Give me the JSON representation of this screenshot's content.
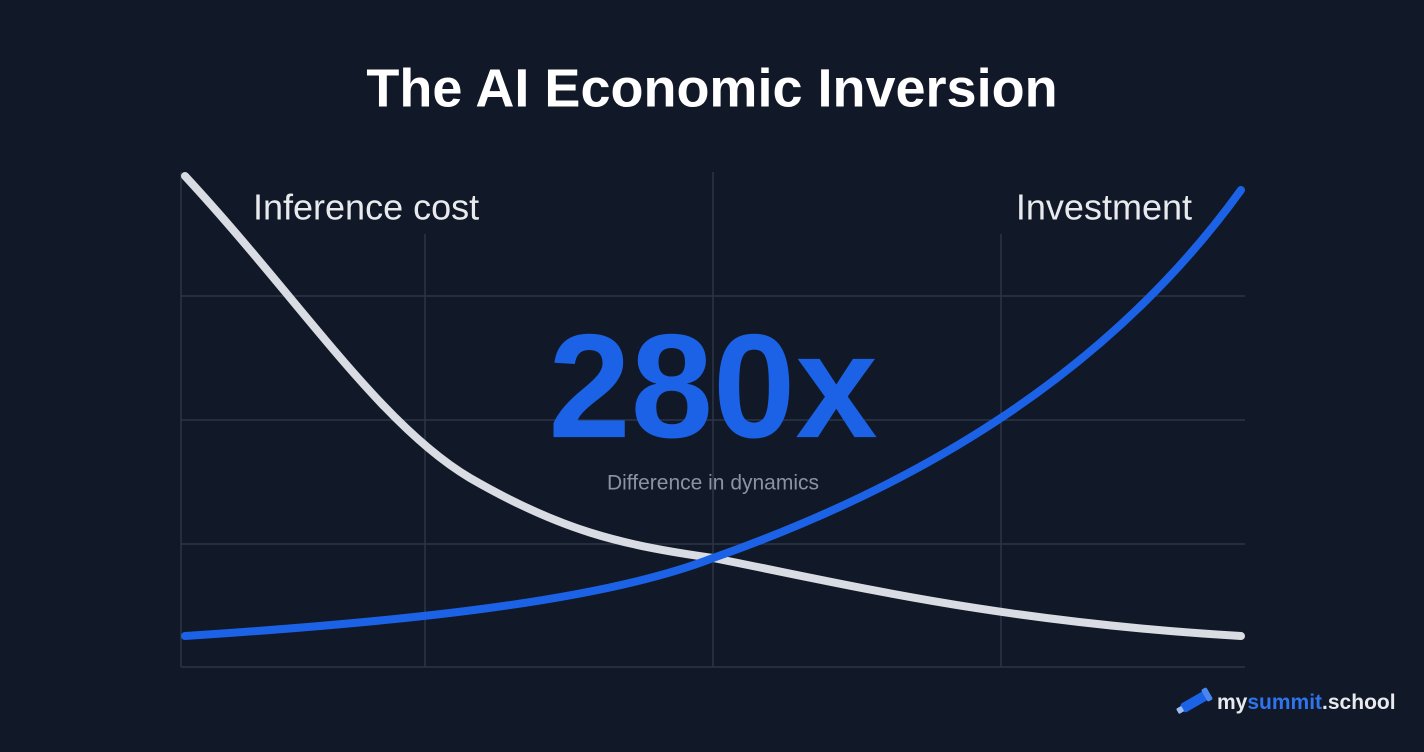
{
  "header": {
    "title": "The AI Economic Inversion"
  },
  "curves": {
    "falling_label": "Inference cost",
    "rising_label": "Investment"
  },
  "highlight": {
    "figure": "280x",
    "caption": "Difference in dynamics"
  },
  "brand": {
    "prefix": "my",
    "accent": "summit",
    "suffix": ".school"
  }
}
